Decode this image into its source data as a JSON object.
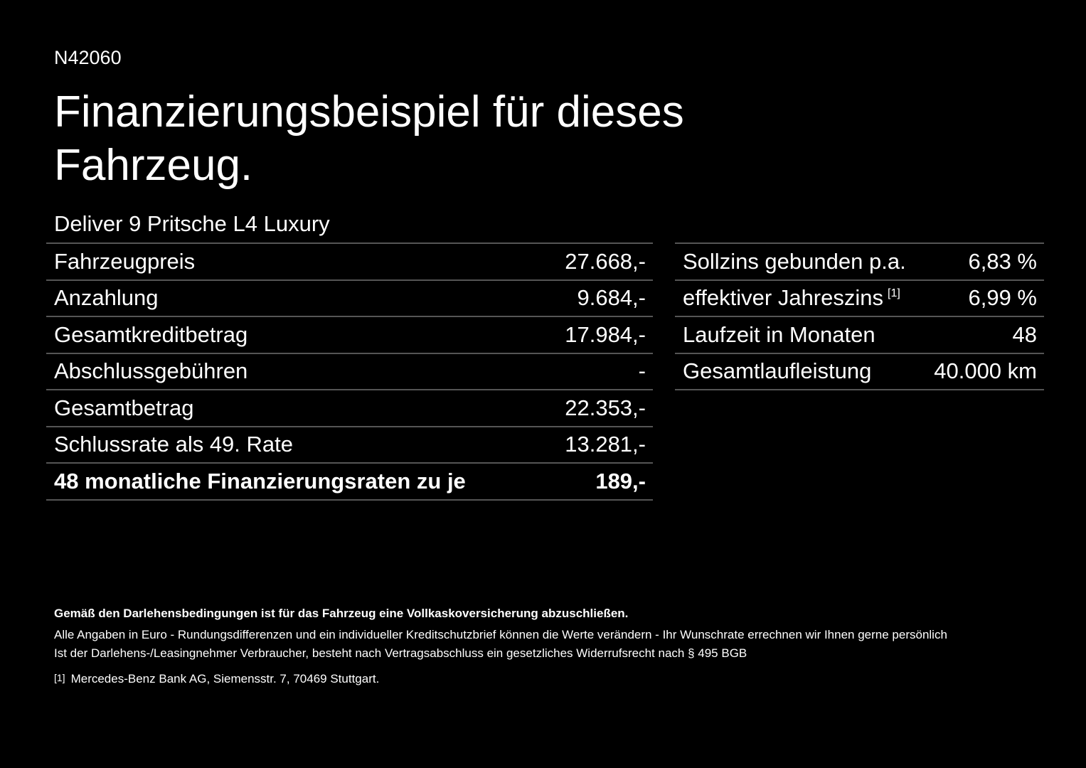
{
  "code": "N42060",
  "title": "Finanzierungsbeispiel für dieses Fahrzeug.",
  "model": "Deliver 9 Pritsche L4 Luxury",
  "left_table": [
    {
      "label": "Fahrzeugpreis",
      "value": "27.668,-"
    },
    {
      "label": "Anzahlung",
      "value": "9.684,-"
    },
    {
      "label": "Gesamtkreditbetrag",
      "value": "17.984,-"
    },
    {
      "label": "Abschlussgebühren",
      "value": "-"
    },
    {
      "label": "Gesamtbetrag",
      "value": "22.353,-"
    },
    {
      "label": "Schlussrate als 49. Rate",
      "value": "13.281,-"
    },
    {
      "label": "48 monatliche Finanzierungsraten zu je",
      "value": "189,-"
    }
  ],
  "right_table": [
    {
      "label": "Sollzins gebunden p.a.",
      "value": "6,83 %"
    },
    {
      "label": "effektiver Jahreszins",
      "footnote": "[1]",
      "value": "6,99 %"
    },
    {
      "label": "Laufzeit in Monaten",
      "value": "48"
    },
    {
      "label": "Gesamtlaufleistung",
      "value": "40.000 km"
    }
  ],
  "footer": {
    "insurance_note": "Gemäß den Darlehensbedingungen ist für das Fahrzeug eine Vollkaskoversicherung abzuschließen.",
    "euro_note": "Alle Angaben in Euro - Rundungsdifferenzen und ein individueller Kreditschutzbrief können die Werte verändern - Ihr Wunschrate errechnen wir Ihnen gerne persönlich",
    "withdrawal_note": "Ist der Darlehens-/Leasingnehmer Verbraucher, besteht nach Vertragsabschluss ein gesetzliches Widerrufsrecht nach § 495 BGB",
    "footnote_mark": "[1]",
    "footnote_text": "Mercedes-Benz Bank AG, Siemensstr. 7, 70469 Stuttgart."
  }
}
